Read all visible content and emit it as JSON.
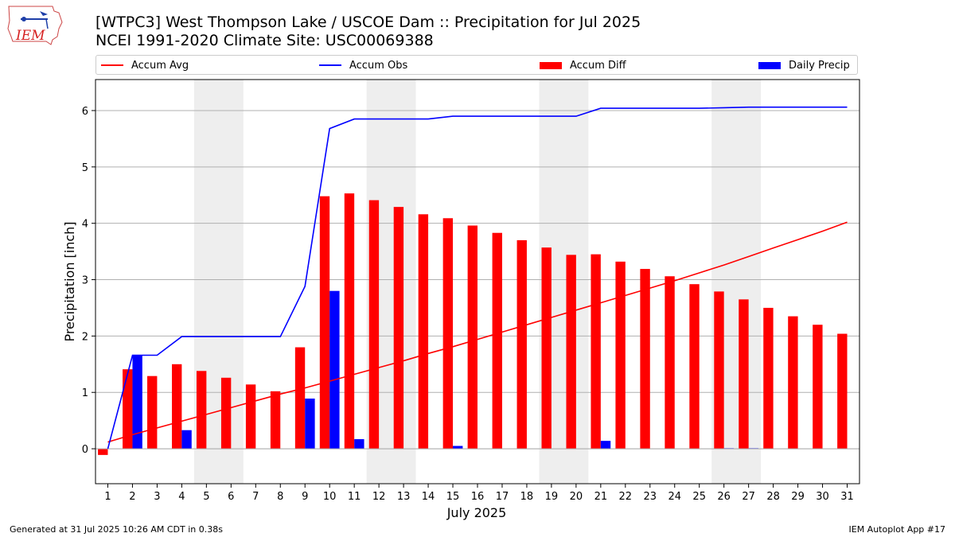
{
  "header": {
    "title_line1": "[WTPC3] West Thompson Lake / USCOE Dam :: Precipitation for Jul 2025",
    "title_line2": "NCEI 1991-2020 Climate Site: USC00069388",
    "logo_text": "IEM"
  },
  "footer": {
    "left": "Generated at 31 Jul 2025 10:26 AM CDT in 0.38s",
    "right": "IEM Autoplot App #17"
  },
  "legend": {
    "accum_avg": "Accum Avg",
    "accum_obs": "Accum Obs",
    "accum_diff": "Accum Diff",
    "daily_precip": "Daily Precip"
  },
  "colors": {
    "accum_avg": "#ff0000",
    "accum_obs": "#0000ff",
    "accum_diff": "#ff0000",
    "daily_precip": "#0000ff",
    "weekend_shade": "#eeeeee",
    "grid": "#b0b0b0"
  },
  "chart_data": {
    "type": "bar",
    "xlabel": "July 2025",
    "ylabel": "Precipitation [inch]",
    "ylim": [
      -0.62,
      6.55
    ],
    "xlim": [
      0.5,
      31.5
    ],
    "grid": "horizontal",
    "legend_placement": "top",
    "weekend_shading": [
      [
        4.5,
        6.5
      ],
      [
        11.5,
        13.5
      ],
      [
        18.5,
        20.5
      ],
      [
        25.5,
        27.5
      ]
    ],
    "x_ticks": [
      1,
      2,
      3,
      4,
      5,
      6,
      7,
      8,
      9,
      10,
      11,
      12,
      13,
      14,
      15,
      16,
      17,
      18,
      19,
      20,
      21,
      22,
      23,
      24,
      25,
      26,
      27,
      28,
      29,
      30,
      31
    ],
    "y_ticks": [
      0,
      1,
      2,
      3,
      4,
      5,
      6
    ],
    "days": [
      1,
      2,
      3,
      4,
      5,
      6,
      7,
      8,
      9,
      10,
      11,
      12,
      13,
      14,
      15,
      16,
      17,
      18,
      19,
      20,
      21,
      22,
      23,
      24,
      25,
      26,
      27,
      28,
      29,
      30,
      31
    ],
    "series": [
      {
        "name": "Accum Avg",
        "kind": "line",
        "values": [
          0.12,
          0.25,
          0.37,
          0.49,
          0.61,
          0.73,
          0.85,
          0.97,
          1.08,
          1.2,
          1.32,
          1.44,
          1.56,
          1.69,
          1.81,
          1.94,
          2.07,
          2.2,
          2.33,
          2.46,
          2.59,
          2.72,
          2.85,
          2.98,
          3.12,
          3.26,
          3.41,
          3.56,
          3.71,
          3.86,
          4.02
        ]
      },
      {
        "name": "Accum Obs",
        "kind": "line",
        "values": [
          0.0,
          1.66,
          1.66,
          1.99,
          1.99,
          1.99,
          1.99,
          1.99,
          2.88,
          5.68,
          5.85,
          5.85,
          5.85,
          5.85,
          5.9,
          5.9,
          5.9,
          5.9,
          5.9,
          5.9,
          6.04,
          6.04,
          6.04,
          6.04,
          6.04,
          6.05,
          6.06,
          6.06,
          6.06,
          6.06,
          6.06
        ]
      },
      {
        "name": "Accum Diff",
        "kind": "bar",
        "values": [
          -0.11,
          1.41,
          1.29,
          1.5,
          1.38,
          1.26,
          1.14,
          1.02,
          1.8,
          4.48,
          4.53,
          4.41,
          4.29,
          4.16,
          4.09,
          3.96,
          3.83,
          3.7,
          3.57,
          3.44,
          3.45,
          3.32,
          3.19,
          3.06,
          2.92,
          2.79,
          2.65,
          2.5,
          2.35,
          2.2,
          2.04
        ]
      },
      {
        "name": "Daily Precip",
        "kind": "bar",
        "values": [
          0.0,
          1.66,
          0.0,
          0.33,
          0.0,
          0.0,
          0.0,
          0.0,
          0.89,
          2.8,
          0.17,
          0.0,
          0.0,
          0.0,
          0.05,
          0.0,
          0.0,
          0.0,
          0.0,
          0.0,
          0.14,
          0.0,
          0.0,
          0.0,
          0.0,
          0.01,
          0.01,
          0.0,
          0.0,
          0.0,
          0.0
        ]
      }
    ]
  }
}
